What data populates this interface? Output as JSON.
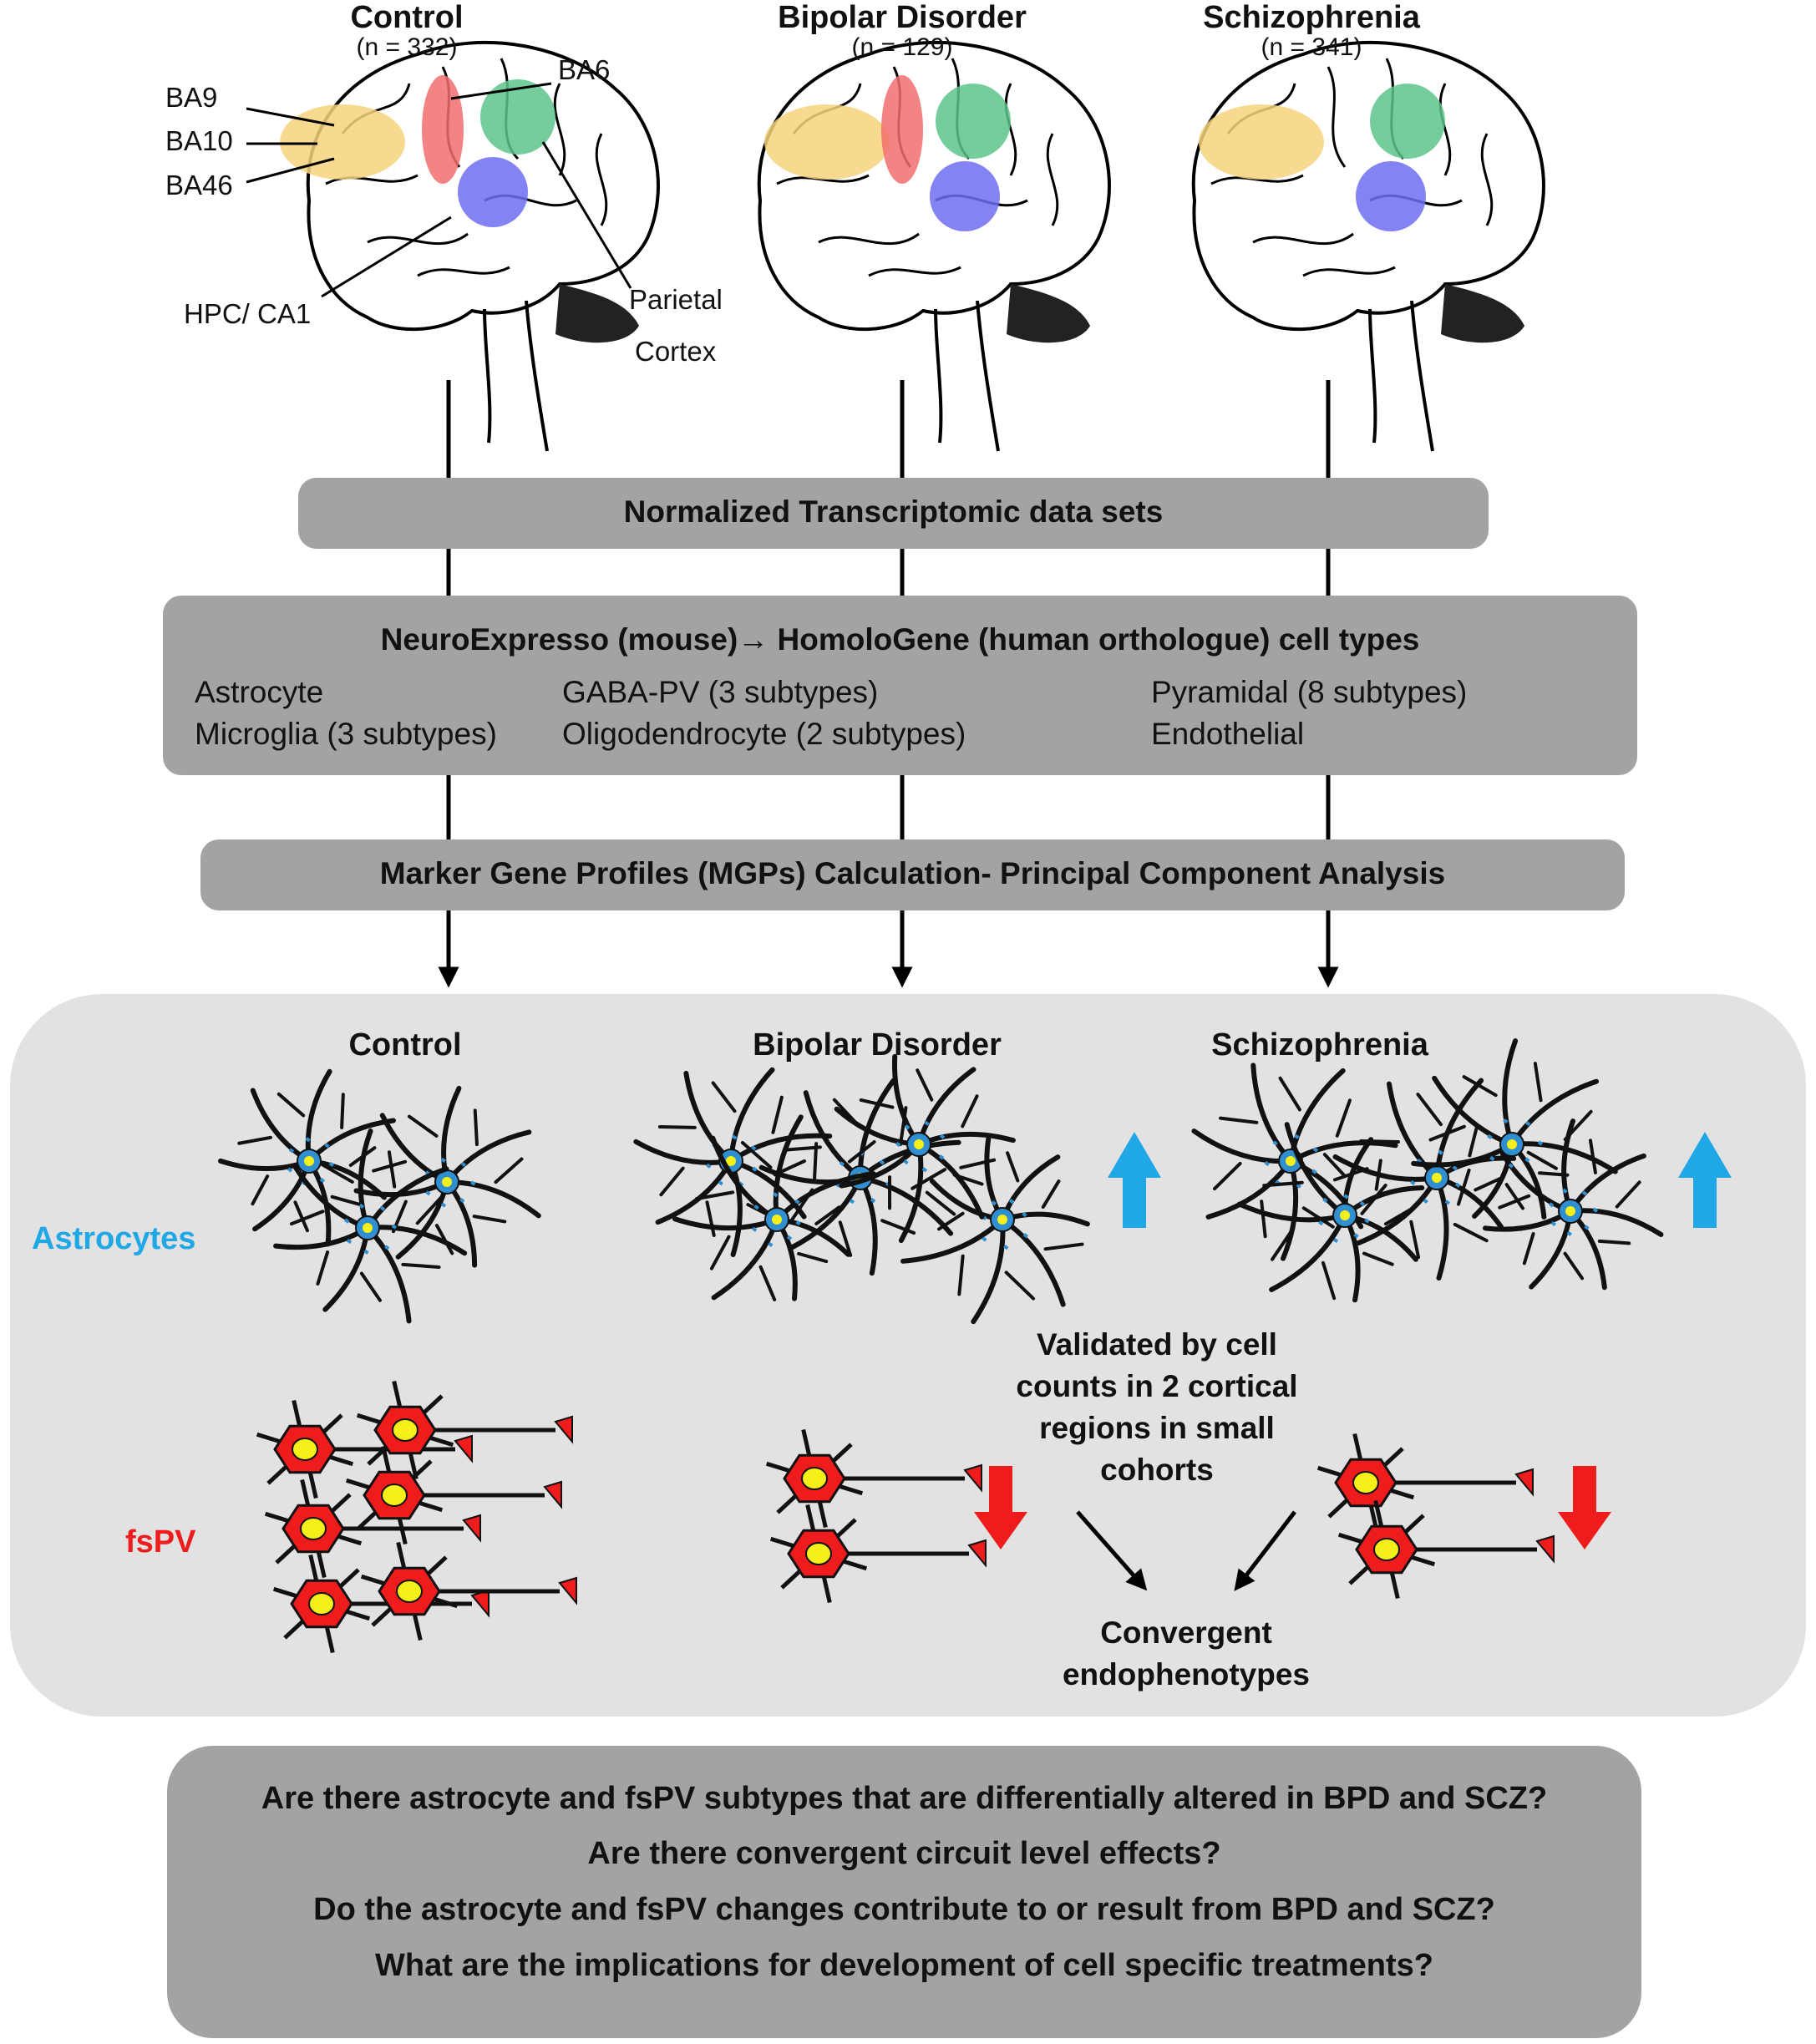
{
  "groups": [
    {
      "name": "Control",
      "n": "(n = 332)"
    },
    {
      "name": "Bipolar Disorder",
      "n": "(n = 129)"
    },
    {
      "name": "Schizophrenia",
      "n": "(n = 341)"
    }
  ],
  "regions": {
    "ba9": "BA9",
    "ba10": "BA10",
    "ba46": "BA46",
    "ba6": "BA6",
    "hpc": "HPC/  CA1",
    "parietal_1": "Parietal",
    "parietal_2": "Cortex"
  },
  "steps": {
    "normalized": "Normalized Transcriptomic data sets",
    "neuroexpresso": "NeuroExpresso (mouse)→ HomoloGene (human orthologue) cell types",
    "mgp": "Marker Gene Profiles (MGPs) Calculation- Principal Component Analysis"
  },
  "cell_types": [
    "Astrocyte",
    "GABA-PV (3 subtypes)",
    "Pyramidal (8 subtypes)",
    "Microglia  (3 subtypes)",
    "Oligodendrocyte (2 subtypes)",
    "Endothelial"
  ],
  "results": {
    "headers": [
      "Control",
      "Bipolar Disorder",
      "Schizophrenia"
    ],
    "astrocytes_label": "Astrocytes",
    "fspv_label": "fsPV",
    "validated": [
      "Validated by cell",
      "counts  in 2 cortical",
      "regions in small",
      "cohorts"
    ],
    "convergent": [
      "Convergent",
      "endophenotypes"
    ]
  },
  "questions": [
    "Are there astrocyte and fsPV subtypes that are differentially altered in BPD and SCZ?",
    "Are there convergent circuit level effects?",
    "Do the astrocyte and fsPV changes contribute to or result from BPD and SCZ?",
    "What are the implications for development of cell specific treatments?"
  ],
  "colors": {
    "bar_gray": "#a3a3a3",
    "panel_gray": "#e2e2e2",
    "astro_blue": "#1fa7e6",
    "astro_soma": "#2f8fd0",
    "fspv_red": "#ee1c1c",
    "nucleus_yellow": "#f5ef1a",
    "region_yellow": "#f7d27c",
    "region_red": "#f26d6d",
    "region_green": "#5cc489",
    "region_blue": "#6d6df2"
  }
}
